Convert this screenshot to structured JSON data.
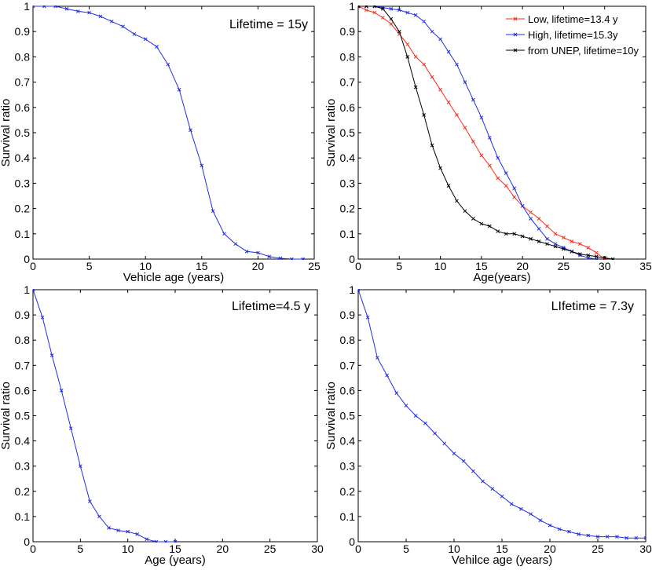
{
  "chart_data": [
    {
      "type": "line",
      "title": "Lifetime = 15y",
      "xlabel": "Vehicle age (years)",
      "ylabel": "Survival ratio",
      "xlim": [
        0,
        25
      ],
      "ylim": [
        0,
        1
      ],
      "xticks": [
        0,
        5,
        10,
        15,
        20,
        25
      ],
      "yticks": [
        0,
        0.1,
        0.2,
        0.3,
        0.4,
        0.5,
        0.6,
        0.7,
        0.8,
        0.9,
        1
      ],
      "series": [
        {
          "color": "#1f2ee0",
          "x": [
            0,
            1,
            2,
            3,
            4,
            5,
            6,
            7,
            8,
            9,
            10,
            11,
            12,
            13,
            14,
            15,
            16,
            17,
            18,
            19,
            20,
            21,
            22,
            23,
            24
          ],
          "y": [
            1.0,
            1.0,
            1.0,
            0.99,
            0.98,
            0.975,
            0.96,
            0.94,
            0.92,
            0.89,
            0.87,
            0.84,
            0.77,
            0.67,
            0.51,
            0.37,
            0.19,
            0.1,
            0.06,
            0.03,
            0.025,
            0.01,
            0.003,
            0.0,
            0.0
          ]
        }
      ]
    },
    {
      "type": "line",
      "title": "",
      "xlabel": "Age(years)",
      "ylabel": "Survival ratio",
      "xlim": [
        0,
        35
      ],
      "ylim": [
        0,
        1
      ],
      "xticks": [
        0,
        5,
        10,
        15,
        20,
        25,
        30,
        35
      ],
      "yticks": [
        0,
        0.1,
        0.2,
        0.3,
        0.4,
        0.5,
        0.6,
        0.7,
        0.8,
        0.9,
        1
      ],
      "legend_position": "top-right",
      "series": [
        {
          "name": "Low, lifetime=13.4 y",
          "color": "#ff2a1a",
          "x": [
            0,
            1,
            2,
            3,
            4,
            5,
            6,
            7,
            8,
            9,
            10,
            11,
            12,
            13,
            14,
            15,
            16,
            17,
            18,
            19,
            20,
            21,
            22,
            23,
            24,
            25,
            26,
            27,
            28,
            29,
            30
          ],
          "y": [
            1.0,
            0.985,
            0.975,
            0.955,
            0.93,
            0.89,
            0.85,
            0.8,
            0.77,
            0.72,
            0.67,
            0.62,
            0.57,
            0.52,
            0.465,
            0.41,
            0.37,
            0.32,
            0.29,
            0.245,
            0.21,
            0.185,
            0.16,
            0.13,
            0.1,
            0.085,
            0.07,
            0.06,
            0.045,
            0.025,
            0.0
          ]
        },
        {
          "name": "High, lifetime=15.3y",
          "color": "#1f2ee0",
          "x": [
            0,
            1,
            2,
            3,
            4,
            5,
            6,
            7,
            8,
            9,
            10,
            11,
            12,
            13,
            14,
            15,
            16,
            17,
            18,
            19,
            20,
            21,
            22,
            23,
            24,
            25,
            26,
            27,
            28,
            29
          ],
          "y": [
            1.0,
            1.0,
            1.0,
            0.995,
            0.99,
            0.985,
            0.975,
            0.965,
            0.94,
            0.9,
            0.87,
            0.82,
            0.77,
            0.7,
            0.63,
            0.56,
            0.48,
            0.4,
            0.34,
            0.28,
            0.21,
            0.16,
            0.12,
            0.08,
            0.06,
            0.045,
            0.03,
            0.015,
            0.005,
            0.0
          ]
        },
        {
          "name": "from UNEP, lifetime=10y",
          "color": "#000000",
          "x": [
            0,
            1,
            2,
            3,
            4,
            5,
            6,
            7,
            8,
            9,
            10,
            11,
            12,
            13,
            14,
            15,
            16,
            17,
            18,
            19,
            20,
            21,
            22,
            23,
            24,
            25,
            26,
            27,
            28,
            29,
            30,
            31
          ],
          "y": [
            1.0,
            1.0,
            1.0,
            0.99,
            0.95,
            0.9,
            0.8,
            0.68,
            0.57,
            0.45,
            0.36,
            0.29,
            0.23,
            0.19,
            0.16,
            0.14,
            0.13,
            0.11,
            0.1,
            0.1,
            0.09,
            0.08,
            0.07,
            0.06,
            0.05,
            0.04,
            0.03,
            0.02,
            0.015,
            0.01,
            0.005,
            0.0
          ]
        }
      ]
    },
    {
      "type": "line",
      "title": "Lifetime=4.5 y",
      "xlabel": "Age (years)",
      "ylabel": "Survival ratio",
      "xlim": [
        0,
        30
      ],
      "ylim": [
        0,
        1
      ],
      "xticks": [
        0,
        5,
        10,
        15,
        20,
        25,
        30
      ],
      "yticks": [
        0,
        0.1,
        0.2,
        0.3,
        0.4,
        0.5,
        0.6,
        0.7,
        0.8,
        0.9,
        1
      ],
      "series": [
        {
          "color": "#1f2ee0",
          "x": [
            0,
            1,
            2,
            3,
            4,
            5,
            6,
            7,
            8,
            9,
            10,
            11,
            12,
            13,
            14,
            15
          ],
          "y": [
            1.0,
            0.89,
            0.74,
            0.6,
            0.45,
            0.3,
            0.16,
            0.1,
            0.055,
            0.045,
            0.04,
            0.03,
            0.01,
            0.0,
            0.0,
            0.0
          ]
        }
      ]
    },
    {
      "type": "line",
      "title": "LIfetime = 7.3y",
      "xlabel": "Vehilce age (years)",
      "ylabel": "Survival ratio",
      "xlim": [
        0,
        30
      ],
      "ylim": [
        0,
        1
      ],
      "xticks": [
        0,
        5,
        10,
        15,
        20,
        25,
        30
      ],
      "yticks": [
        0,
        0.1,
        0.2,
        0.3,
        0.4,
        0.5,
        0.6,
        0.7,
        0.8,
        0.9,
        1
      ],
      "series": [
        {
          "color": "#1f2ee0",
          "x": [
            0,
            1,
            2,
            3,
            4,
            5,
            6,
            7,
            8,
            9,
            10,
            11,
            12,
            13,
            14,
            15,
            16,
            17,
            18,
            19,
            20,
            21,
            22,
            23,
            24,
            25,
            26,
            27,
            28,
            29,
            30
          ],
          "y": [
            1.0,
            0.89,
            0.73,
            0.66,
            0.59,
            0.54,
            0.5,
            0.47,
            0.43,
            0.39,
            0.35,
            0.32,
            0.28,
            0.24,
            0.21,
            0.18,
            0.15,
            0.13,
            0.11,
            0.085,
            0.065,
            0.05,
            0.04,
            0.03,
            0.025,
            0.02,
            0.02,
            0.02,
            0.015,
            0.015,
            0.015
          ]
        }
      ]
    }
  ]
}
